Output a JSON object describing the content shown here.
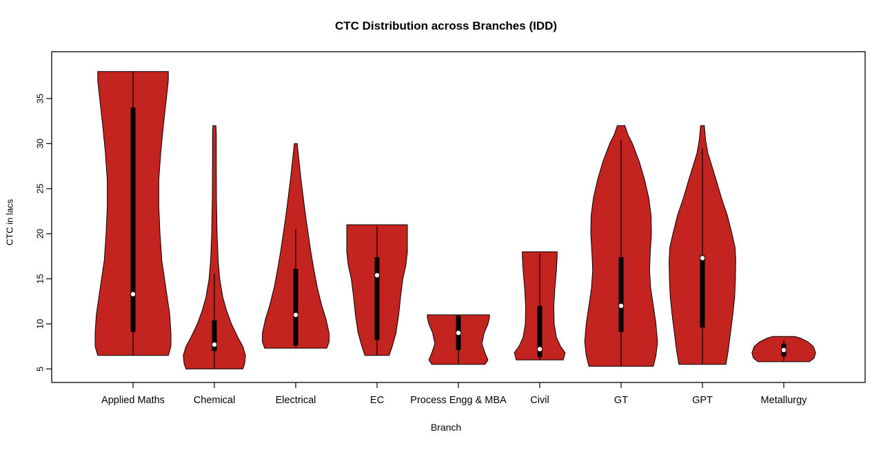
{
  "chart_data": {
    "type": "violin",
    "title": "CTC Distribution across Branches (IDD)",
    "xlabel": "Branch",
    "ylabel": "CTC in lacs",
    "ylim": [
      3.5,
      40.2
    ],
    "yticks": [
      5,
      10,
      15,
      20,
      25,
      30,
      35
    ],
    "grid": false,
    "legend": "none",
    "fill_color": "#C32420",
    "outline_color": "#000000",
    "box_color": "#000000",
    "median_dot_color": "#ffffff",
    "categories": [
      "Applied Maths",
      "Chemical",
      "Electrical",
      "EC",
      "Process Engg & MBA",
      "Civil",
      "GT",
      "GPT",
      "Metallurgy"
    ],
    "violins": [
      {
        "label": "Applied Maths",
        "min": 6.5,
        "max": 38,
        "q1": 9.1,
        "median": 13.3,
        "q3": 34,
        "whisker_low": 6.5,
        "whisker_high": 38,
        "profile": [
          [
            6.5,
            0.93
          ],
          [
            7.5,
            1.0
          ],
          [
            9,
            1.0
          ],
          [
            11,
            0.97
          ],
          [
            13,
            0.9
          ],
          [
            15,
            0.83
          ],
          [
            17,
            0.76
          ],
          [
            20,
            0.71
          ],
          [
            23,
            0.68
          ],
          [
            26,
            0.68
          ],
          [
            29,
            0.73
          ],
          [
            32,
            0.8
          ],
          [
            35,
            0.88
          ],
          [
            37,
            0.93
          ],
          [
            38,
            0.93
          ]
        ]
      },
      {
        "label": "Chemical",
        "min": 5,
        "max": 32,
        "q1": 7.0,
        "median": 7.7,
        "q3": 10.4,
        "whisker_low": 5,
        "whisker_high": 15.6,
        "profile": [
          [
            5,
            0.75
          ],
          [
            5.6,
            0.8
          ],
          [
            6.5,
            0.82
          ],
          [
            7.5,
            0.75
          ],
          [
            8.5,
            0.62
          ],
          [
            10,
            0.45
          ],
          [
            11.5,
            0.32
          ],
          [
            13,
            0.22
          ],
          [
            15,
            0.14
          ],
          [
            17,
            0.1
          ],
          [
            20,
            0.07
          ],
          [
            24,
            0.055
          ],
          [
            28,
            0.05
          ],
          [
            31,
            0.05
          ],
          [
            32,
            0.04
          ]
        ]
      },
      {
        "label": "Electrical",
        "min": 7.3,
        "max": 30,
        "q1": 7.6,
        "median": 11.0,
        "q3": 16.1,
        "whisker_low": 7.3,
        "whisker_high": 20.5,
        "profile": [
          [
            7.3,
            0.82
          ],
          [
            8,
            0.88
          ],
          [
            9,
            0.88
          ],
          [
            10.5,
            0.8
          ],
          [
            12,
            0.69
          ],
          [
            14,
            0.57
          ],
          [
            16,
            0.48
          ],
          [
            18,
            0.4
          ],
          [
            20,
            0.33
          ],
          [
            22,
            0.26
          ],
          [
            24,
            0.2
          ],
          [
            26,
            0.14
          ],
          [
            28,
            0.09
          ],
          [
            29.5,
            0.05
          ],
          [
            30,
            0.04
          ]
        ]
      },
      {
        "label": "EC",
        "min": 6.5,
        "max": 21,
        "q1": 8.2,
        "median": 15.4,
        "q3": 17.4,
        "whisker_low": 6.5,
        "whisker_high": 20.8,
        "profile": [
          [
            6.5,
            0.32
          ],
          [
            7.5,
            0.4
          ],
          [
            9,
            0.5
          ],
          [
            11,
            0.57
          ],
          [
            13,
            0.62
          ],
          [
            15,
            0.68
          ],
          [
            16.5,
            0.76
          ],
          [
            18,
            0.8
          ],
          [
            19.5,
            0.8
          ],
          [
            21,
            0.8
          ]
        ]
      },
      {
        "label": "Process Engg & MBA",
        "min": 5.5,
        "max": 11,
        "q1": 7.1,
        "median": 9.0,
        "q3": 10.9,
        "whisker_low": 5.6,
        "whisker_high": 11,
        "profile": [
          [
            5.5,
            0.7
          ],
          [
            6,
            0.78
          ],
          [
            6.8,
            0.7
          ],
          [
            7.8,
            0.62
          ],
          [
            9,
            0.68
          ],
          [
            10,
            0.78
          ],
          [
            10.7,
            0.82
          ],
          [
            11,
            0.82
          ]
        ]
      },
      {
        "label": "Civil",
        "min": 6,
        "max": 18,
        "q1": 6.3,
        "median": 7.2,
        "q3": 12.0,
        "whisker_low": 6,
        "whisker_high": 17.8,
        "profile": [
          [
            6,
            0.62
          ],
          [
            6.8,
            0.67
          ],
          [
            7.5,
            0.55
          ],
          [
            8.5,
            0.44
          ],
          [
            10,
            0.38
          ],
          [
            12,
            0.37
          ],
          [
            14,
            0.4
          ],
          [
            16,
            0.44
          ],
          [
            17.5,
            0.46
          ],
          [
            18,
            0.46
          ]
        ]
      },
      {
        "label": "GT",
        "min": 5.3,
        "max": 32,
        "q1": 9.1,
        "median": 12.0,
        "q3": 17.4,
        "whisker_low": 5.3,
        "whisker_high": 30.4,
        "profile": [
          [
            5.3,
            0.85
          ],
          [
            6.5,
            0.92
          ],
          [
            8,
            0.96
          ],
          [
            10,
            0.92
          ],
          [
            12,
            0.85
          ],
          [
            14,
            0.78
          ],
          [
            16,
            0.75
          ],
          [
            18,
            0.77
          ],
          [
            20,
            0.8
          ],
          [
            22,
            0.79
          ],
          [
            24,
            0.73
          ],
          [
            26,
            0.62
          ],
          [
            28,
            0.48
          ],
          [
            30,
            0.3
          ],
          [
            31,
            0.18
          ],
          [
            32,
            0.1
          ]
        ]
      },
      {
        "label": "GPT",
        "min": 5.5,
        "max": 32,
        "q1": 9.6,
        "median": 17.3,
        "q3": 17.6,
        "whisker_low": 5.5,
        "whisker_high": 29.5,
        "profile": [
          [
            5.5,
            0.62
          ],
          [
            7,
            0.68
          ],
          [
            9,
            0.74
          ],
          [
            11,
            0.8
          ],
          [
            13,
            0.85
          ],
          [
            15,
            0.87
          ],
          [
            17,
            0.88
          ],
          [
            18.5,
            0.86
          ],
          [
            20,
            0.78
          ],
          [
            22,
            0.66
          ],
          [
            24,
            0.5
          ],
          [
            26,
            0.36
          ],
          [
            27.5,
            0.25
          ],
          [
            29,
            0.14
          ],
          [
            30.5,
            0.08
          ],
          [
            32,
            0.05
          ]
        ]
      },
      {
        "label": "Metallurgy",
        "min": 5.8,
        "max": 8.6,
        "q1": 6.4,
        "median": 7.1,
        "q3": 7.8,
        "whisker_low": 5.9,
        "whisker_high": 8.2,
        "profile": [
          [
            5.8,
            0.68
          ],
          [
            6.2,
            0.8
          ],
          [
            6.8,
            0.84
          ],
          [
            7.5,
            0.78
          ],
          [
            8,
            0.64
          ],
          [
            8.4,
            0.45
          ],
          [
            8.6,
            0.3
          ]
        ]
      }
    ]
  }
}
